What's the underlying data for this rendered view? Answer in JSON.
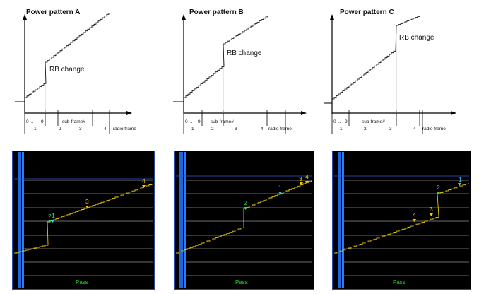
{
  "diagrams": [
    {
      "title": "Power pattern A",
      "note": "RB change",
      "ticks": [
        "0",
        "..",
        "9"
      ],
      "sub_frame_label": "sub-frame#",
      "radio_frame_label": "radio frame",
      "frames": [
        "1",
        "2",
        "3",
        "4"
      ]
    },
    {
      "title": "Power pattern B",
      "note": "RB change",
      "ticks": [
        "0",
        "..",
        "9"
      ],
      "sub_frame_label": "sub-frame#",
      "radio_frame_label": "radio frame",
      "frames": [
        "1",
        "2",
        "3",
        "4"
      ]
    },
    {
      "title": "Power pattern C",
      "note": "RB change",
      "ticks": [
        "0",
        "..",
        "9"
      ],
      "sub_frame_label": "sub-frame#",
      "radio_frame_label": "radio frame",
      "frames": [
        "1",
        "2",
        "3",
        "4"
      ]
    }
  ],
  "screens": [
    {
      "status": "Pass",
      "markers": [
        "2",
        "1",
        "3",
        "4"
      ]
    },
    {
      "status": "Pass",
      "markers": [
        "2",
        "1",
        "3",
        "4"
      ]
    },
    {
      "status": "Pass",
      "markers": [
        "4",
        "3",
        "2",
        "1"
      ]
    }
  ],
  "colors": {
    "trace": "#e8c800",
    "screen_bg": "#000000",
    "screen_frame": "#1d5bd0",
    "grid": "#d8d8d8",
    "marker_yellow": "#f2d000",
    "marker_cyan": "#2fd6e6",
    "marker_green": "#2ee04a",
    "pass": "#27d627"
  }
}
